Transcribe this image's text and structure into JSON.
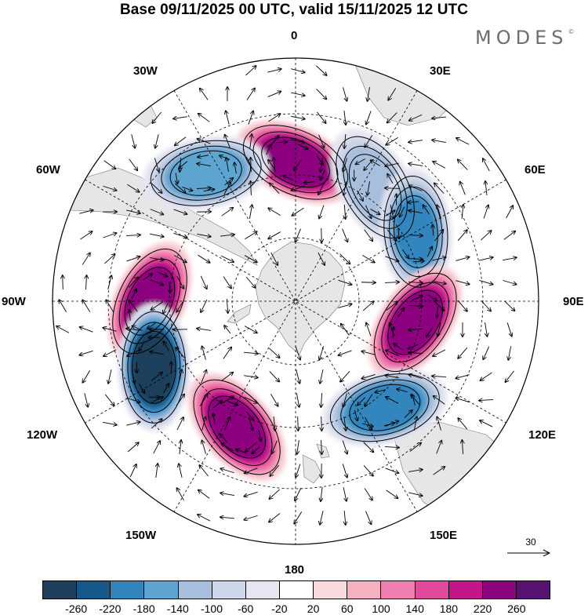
{
  "title": "Base 09/11/2025 00 UTC, valid 15/11/2025 12 UTC",
  "brand": "MODES",
  "brand_mark": "©",
  "longitude_labels": {
    "lon_0": "0",
    "lon_30e": "30E",
    "lon_60e": "60E",
    "lon_90e": "90E",
    "lon_120e": "120E",
    "lon_150e": "150E",
    "lon_180": "180",
    "lon_150w": "150W",
    "lon_120w": "120W",
    "lon_90w": "90W",
    "lon_60w": "60W",
    "lon_30w": "30W"
  },
  "reference_vector": {
    "value": "30"
  },
  "colorbar": {
    "colors": [
      "#1f3f5c",
      "#17588a",
      "#3385bd",
      "#5da4d1",
      "#a7bedc",
      "#cdd5e8",
      "#e6e6f1",
      "#ffffff",
      "#f8d9dd",
      "#f5b1c2",
      "#ef7fae",
      "#e1499b",
      "#c2168a",
      "#8d0480",
      "#561370"
    ],
    "ticks": [
      "-260",
      "-220",
      "-180",
      "-140",
      "-100",
      "-60",
      "-20",
      "20",
      "60",
      "100",
      "140",
      "180",
      "220",
      "260"
    ]
  },
  "anomaly_centers": [
    {
      "lon": 0,
      "lat": -50,
      "value": 230,
      "label": "positive"
    },
    {
      "lon": 35,
      "lat": -50,
      "value": -120,
      "label": "negative"
    },
    {
      "lon": -35,
      "lat": -45,
      "value": -160,
      "label": "negative"
    },
    {
      "lon": 60,
      "lat": -50,
      "value": -180,
      "label": "negative"
    },
    {
      "lon": 100,
      "lat": -55,
      "value": 250,
      "label": "positive"
    },
    {
      "lon": 140,
      "lat": -50,
      "value": -190,
      "label": "negative"
    },
    {
      "lon": -90,
      "lat": -48,
      "value": 250,
      "label": "positive"
    },
    {
      "lon": -115,
      "lat": -45,
      "value": -270,
      "label": "negative"
    },
    {
      "lon": -155,
      "lat": -50,
      "value": 230,
      "label": "positive"
    }
  ]
}
